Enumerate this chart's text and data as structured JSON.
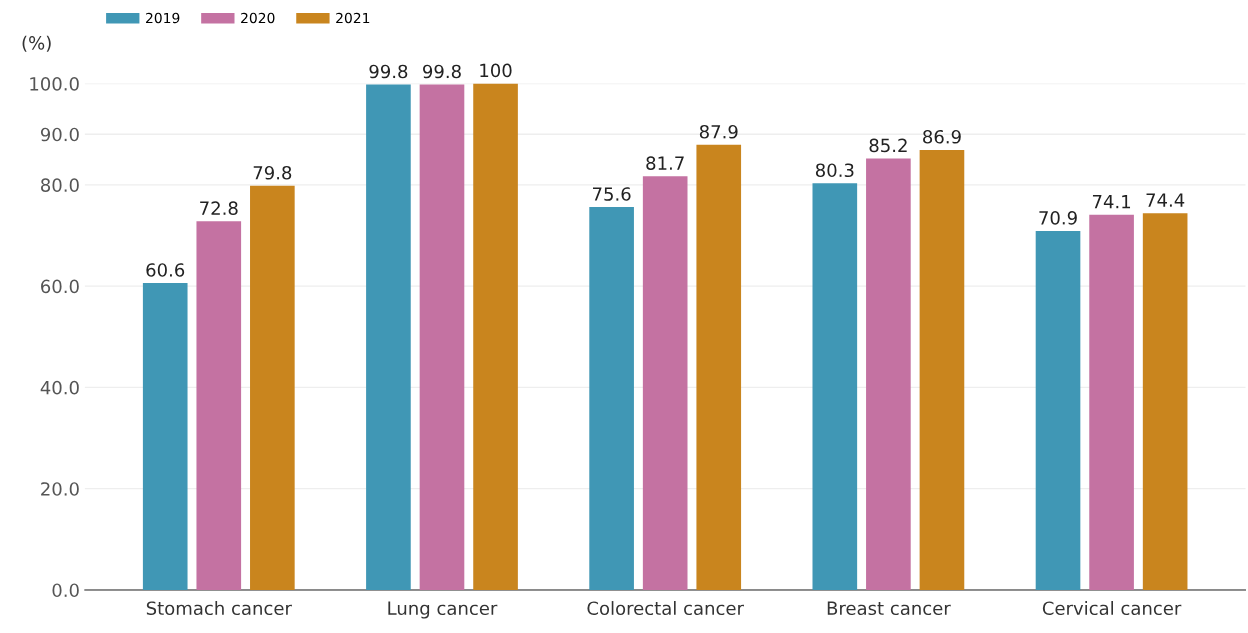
{
  "chart_data": {
    "type": "bar",
    "ylabel": "(%)",
    "categories": [
      "Stomach cancer",
      "Lung cancer",
      "Colorectal cancer",
      "Breast cancer",
      "Cervical cancer"
    ],
    "series": [
      {
        "name": "2019",
        "color": "#4097b5",
        "values": [
          60.6,
          99.8,
          75.6,
          80.3,
          70.9
        ]
      },
      {
        "name": "2020",
        "color": "#c472a2",
        "values": [
          72.8,
          99.8,
          81.7,
          85.2,
          74.1
        ]
      },
      {
        "name": "2021",
        "color": "#c9851e",
        "values": [
          79.8,
          100,
          87.9,
          86.9,
          74.4
        ]
      }
    ],
    "ylim": [
      0,
      100
    ],
    "yticks": [
      {
        "value": 0,
        "label": "0.0"
      },
      {
        "value": 20,
        "label": "20.0"
      },
      {
        "value": 40,
        "label": "40.0"
      },
      {
        "value": 60,
        "label": "60.0"
      },
      {
        "value": 80,
        "label": "80.0"
      },
      {
        "value": 90,
        "label": "90.0"
      },
      {
        "value": 100,
        "label": "100.0"
      }
    ],
    "grid": "y",
    "legend": "top left",
    "data_labels": true
  }
}
